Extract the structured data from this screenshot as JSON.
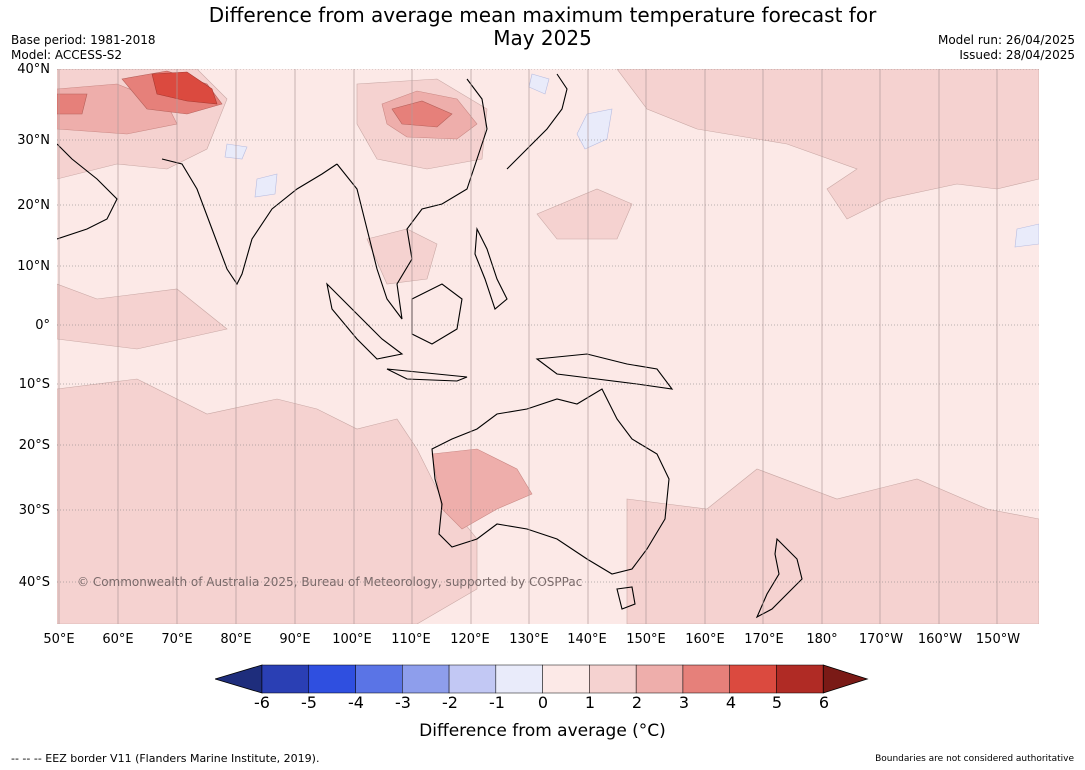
{
  "title_line1": "Difference from average mean maximum temperature forecast for",
  "title_line2": "May 2025",
  "base_period": "Base period: 1981-2018",
  "model": "Model: ACCESS-S2",
  "model_run": "Model run: 26/04/2025",
  "issued": "Issued: 28/04/2025",
  "lat_labels": [
    "40°N",
    "30°N",
    "20°N",
    "10°N",
    "0°",
    "10°S",
    "20°S",
    "30°S",
    "40°S"
  ],
  "lon_labels": [
    "50°E",
    "60°E",
    "70°E",
    "80°E",
    "90°E",
    "100°E",
    "110°E",
    "120°E",
    "130°E",
    "140°E",
    "150°E",
    "160°E",
    "170°E",
    "180°",
    "170°W",
    "160°W",
    "150°W"
  ],
  "copyright": "© Commonwealth of Australia 2025, Bureau of Meteorology, supported by COSPPac",
  "colorbar": {
    "ticks": [
      "-6",
      "-5",
      "-4",
      "-3",
      "-2",
      "-1",
      "0",
      "1",
      "2",
      "3",
      "4",
      "5",
      "6"
    ],
    "colors": [
      "#1e2d7c",
      "#2a3fb4",
      "#2f4fe0",
      "#5a74e6",
      "#8e9eec",
      "#c2c8f4",
      "#e9ebfa",
      "#fce9e7",
      "#f5d2d0",
      "#eeaeab",
      "#e6807a",
      "#db4a3f",
      "#b02b25",
      "#7a1a16"
    ],
    "title": "Difference from average (°C)"
  },
  "footer_left": "--  --  -- EEZ border V11 (Flanders Marine Institute, 2019).",
  "footer_right": "Boundaries are not considered authoritative"
}
